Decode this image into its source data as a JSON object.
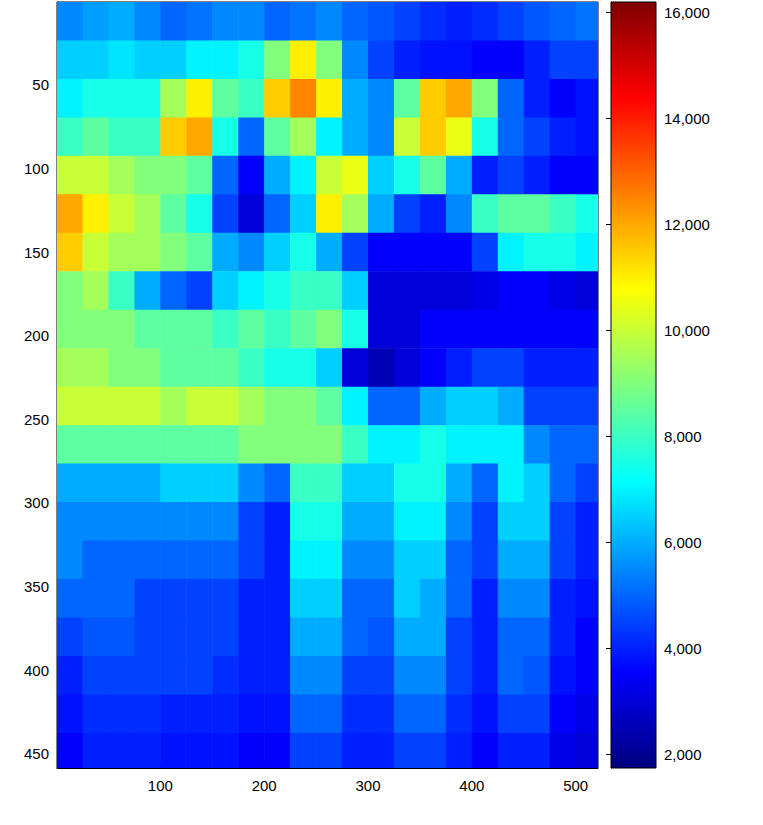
{
  "chart_data": {
    "type": "heatmap",
    "x": [
      12.5,
      37.5,
      62.5,
      87.5,
      112.5,
      137.5,
      162.5,
      187.5,
      212.5,
      237.5,
      262.5,
      287.5,
      312.5,
      337.5,
      362.5,
      387.5,
      412.5,
      437.5,
      462.5,
      487.5,
      512.5
    ],
    "y": [
      12,
      35,
      58,
      81,
      104,
      127,
      150,
      173,
      196,
      219,
      242,
      265,
      288,
      311,
      334,
      357,
      380,
      403,
      426,
      449
    ],
    "values": [
      [
        5500,
        5800,
        6000,
        5500,
        5000,
        5200,
        5500,
        5500,
        5000,
        5200,
        5500,
        5000,
        4800,
        4500,
        4200,
        4000,
        4200,
        4500,
        4800,
        5000,
        5200
      ],
      [
        6500,
        6500,
        6800,
        6500,
        6500,
        7000,
        7000,
        7500,
        9000,
        11000,
        9000,
        5500,
        4500,
        4000,
        3800,
        3800,
        3500,
        3500,
        4000,
        4500,
        4500
      ],
      [
        7000,
        7500,
        7500,
        7500,
        9500,
        11000,
        8500,
        8000,
        11500,
        12500,
        11000,
        6000,
        5500,
        8500,
        11500,
        12000,
        9000,
        5000,
        4000,
        3500,
        3800
      ],
      [
        8000,
        8500,
        8000,
        8000,
        11500,
        12000,
        7500,
        5000,
        8500,
        9500,
        7000,
        6000,
        5500,
        10000,
        11500,
        10500,
        7500,
        5000,
        4500,
        4000,
        3800
      ],
      [
        10000,
        10000,
        9500,
        9000,
        9000,
        8500,
        5000,
        3500,
        6000,
        7000,
        10000,
        10500,
        6500,
        7500,
        8500,
        6000,
        4000,
        4500,
        4000,
        3500,
        3500
      ],
      [
        12000,
        11000,
        10000,
        9500,
        8500,
        7500,
        4500,
        3000,
        5000,
        6500,
        11000,
        9500,
        6000,
        4500,
        4000,
        5500,
        8000,
        8500,
        8500,
        8000,
        7500
      ],
      [
        11500,
        10000,
        9500,
        9500,
        9000,
        8500,
        6000,
        5500,
        6500,
        7500,
        6000,
        4500,
        3500,
        3500,
        3500,
        3500,
        4500,
        7000,
        7500,
        7500,
        7000
      ],
      [
        9000,
        9500,
        8000,
        6000,
        5000,
        4500,
        6500,
        7000,
        7500,
        8000,
        8000,
        6500,
        3000,
        3000,
        3000,
        3000,
        3200,
        3500,
        3500,
        3200,
        3000
      ],
      [
        9000,
        9000,
        9000,
        8500,
        8500,
        8500,
        8000,
        8500,
        8000,
        8500,
        9000,
        7500,
        3000,
        3000,
        3500,
        3500,
        3500,
        3500,
        3500,
        3500,
        3500
      ],
      [
        9500,
        9500,
        9000,
        9000,
        8500,
        8500,
        8500,
        8000,
        7500,
        7500,
        6500,
        3000,
        2500,
        3000,
        3500,
        4000,
        4500,
        4500,
        4000,
        4000,
        4000
      ],
      [
        10000,
        10000,
        10000,
        10000,
        9500,
        10000,
        10000,
        9500,
        9000,
        9000,
        8500,
        7000,
        5000,
        5000,
        6000,
        6500,
        6500,
        6000,
        4500,
        4500,
        4500
      ],
      [
        8500,
        8500,
        8500,
        8500,
        8500,
        8500,
        8500,
        9000,
        9000,
        9000,
        9000,
        8000,
        7000,
        7000,
        7500,
        7000,
        7000,
        7000,
        5500,
        5000,
        5000
      ],
      [
        6000,
        6000,
        6000,
        6000,
        6500,
        6500,
        6500,
        5500,
        5000,
        8000,
        8000,
        6500,
        6500,
        7500,
        7500,
        6000,
        5000,
        7000,
        6500,
        5000,
        4500
      ],
      [
        5500,
        5500,
        5500,
        5500,
        5500,
        5500,
        5500,
        4500,
        4000,
        7500,
        7500,
        6000,
        6000,
        7000,
        7000,
        5500,
        4500,
        6500,
        6500,
        4500,
        4000
      ],
      [
        5500,
        5000,
        5000,
        5000,
        5000,
        5000,
        5000,
        4500,
        4000,
        7000,
        7000,
        5500,
        5500,
        6500,
        6500,
        5000,
        4500,
        6000,
        6000,
        4500,
        4000
      ],
      [
        5000,
        5000,
        5000,
        4500,
        4500,
        4500,
        4500,
        4000,
        4000,
        6500,
        6500,
        5000,
        5000,
        6500,
        6000,
        5000,
        4000,
        5500,
        5500,
        4000,
        3800
      ],
      [
        4500,
        4800,
        4800,
        4500,
        4500,
        4500,
        4500,
        4000,
        4000,
        6000,
        6000,
        5000,
        4800,
        6000,
        6000,
        4500,
        4000,
        5000,
        5000,
        4000,
        3500
      ],
      [
        4000,
        4500,
        4500,
        4500,
        4500,
        4500,
        4200,
        4000,
        4000,
        5500,
        5500,
        4500,
        4500,
        5500,
        5500,
        4500,
        4000,
        5000,
        4800,
        3800,
        3500
      ],
      [
        3800,
        4200,
        4200,
        4200,
        4000,
        4000,
        4000,
        3800,
        3800,
        5000,
        5000,
        4200,
        4200,
        5000,
        5000,
        4200,
        3800,
        4500,
        4500,
        3500,
        3200
      ],
      [
        3500,
        4000,
        4000,
        4000,
        3800,
        3800,
        3800,
        3500,
        3500,
        4500,
        4500,
        4000,
        4000,
        4500,
        4500,
        4000,
        3500,
        4000,
        4000,
        3200,
        3000
      ]
    ],
    "xlim": [
      0.5,
      521.5
    ],
    "ylim": [
      0.5,
      458.5
    ],
    "xticks": [
      100,
      200,
      300,
      400,
      500
    ],
    "yticks": [
      50,
      100,
      150,
      200,
      250,
      300,
      350,
      400,
      450
    ],
    "grid": false,
    "colorbar": {
      "range": [
        1750,
        16200
      ],
      "ticks": [
        2000,
        4000,
        6000,
        8000,
        10000,
        12000,
        14000,
        16000
      ]
    }
  }
}
